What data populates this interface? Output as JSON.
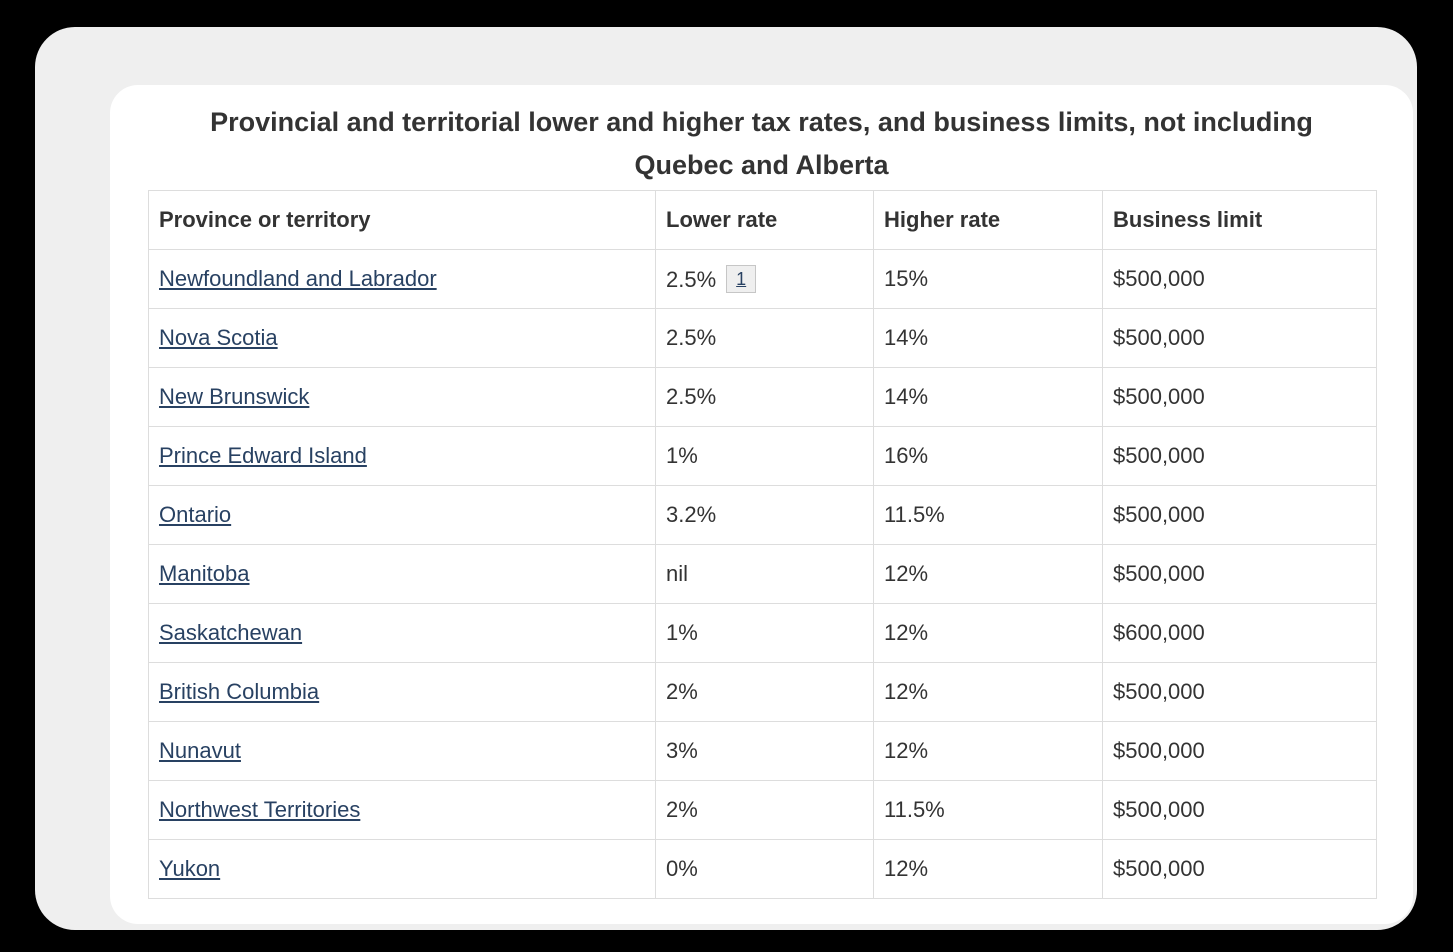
{
  "page": {
    "title": "Provincial and territorial lower and higher tax rates, and business limits, not including Quebec and Alberta"
  },
  "table": {
    "headers": [
      "Province or territory",
      "Lower rate",
      "Higher rate",
      "Business limit"
    ],
    "rows": [
      {
        "province": "Newfoundland and Labrador",
        "lower_rate": "2.5%",
        "footnote": "1",
        "higher_rate": "15%",
        "business_limit": "$500,000"
      },
      {
        "province": "Nova Scotia",
        "lower_rate": "2.5%",
        "higher_rate": "14%",
        "business_limit": "$500,000"
      },
      {
        "province": "New Brunswick",
        "lower_rate": "2.5%",
        "higher_rate": "14%",
        "business_limit": "$500,000"
      },
      {
        "province": "Prince Edward Island",
        "lower_rate": "1%",
        "higher_rate": "16%",
        "business_limit": "$500,000"
      },
      {
        "province": "Ontario",
        "lower_rate": "3.2%",
        "higher_rate": "11.5%",
        "business_limit": "$500,000"
      },
      {
        "province": "Manitoba",
        "lower_rate": "nil",
        "higher_rate": "12%",
        "business_limit": "$500,000"
      },
      {
        "province": "Saskatchewan",
        "lower_rate": "1%",
        "higher_rate": "12%",
        "business_limit": "$600,000"
      },
      {
        "province": "British Columbia",
        "lower_rate": "2%",
        "higher_rate": "12%",
        "business_limit": "$500,000"
      },
      {
        "province": "Nunavut",
        "lower_rate": "3%",
        "higher_rate": "12%",
        "business_limit": "$500,000"
      },
      {
        "province": "Northwest Territories",
        "lower_rate": "2%",
        "higher_rate": "11.5%",
        "business_limit": "$500,000"
      },
      {
        "province": "Yukon",
        "lower_rate": "0%",
        "higher_rate": "12%",
        "business_limit": "$500,000"
      }
    ]
  },
  "colors": {
    "page_background": "#000000",
    "panel_background": "#efefef",
    "card_background": "#ffffff",
    "body_text": "#333333",
    "link": "#284162",
    "table_border": "#dddddd",
    "footnote_box_background": "#efefef",
    "footnote_box_border": "#c6c6c6"
  }
}
